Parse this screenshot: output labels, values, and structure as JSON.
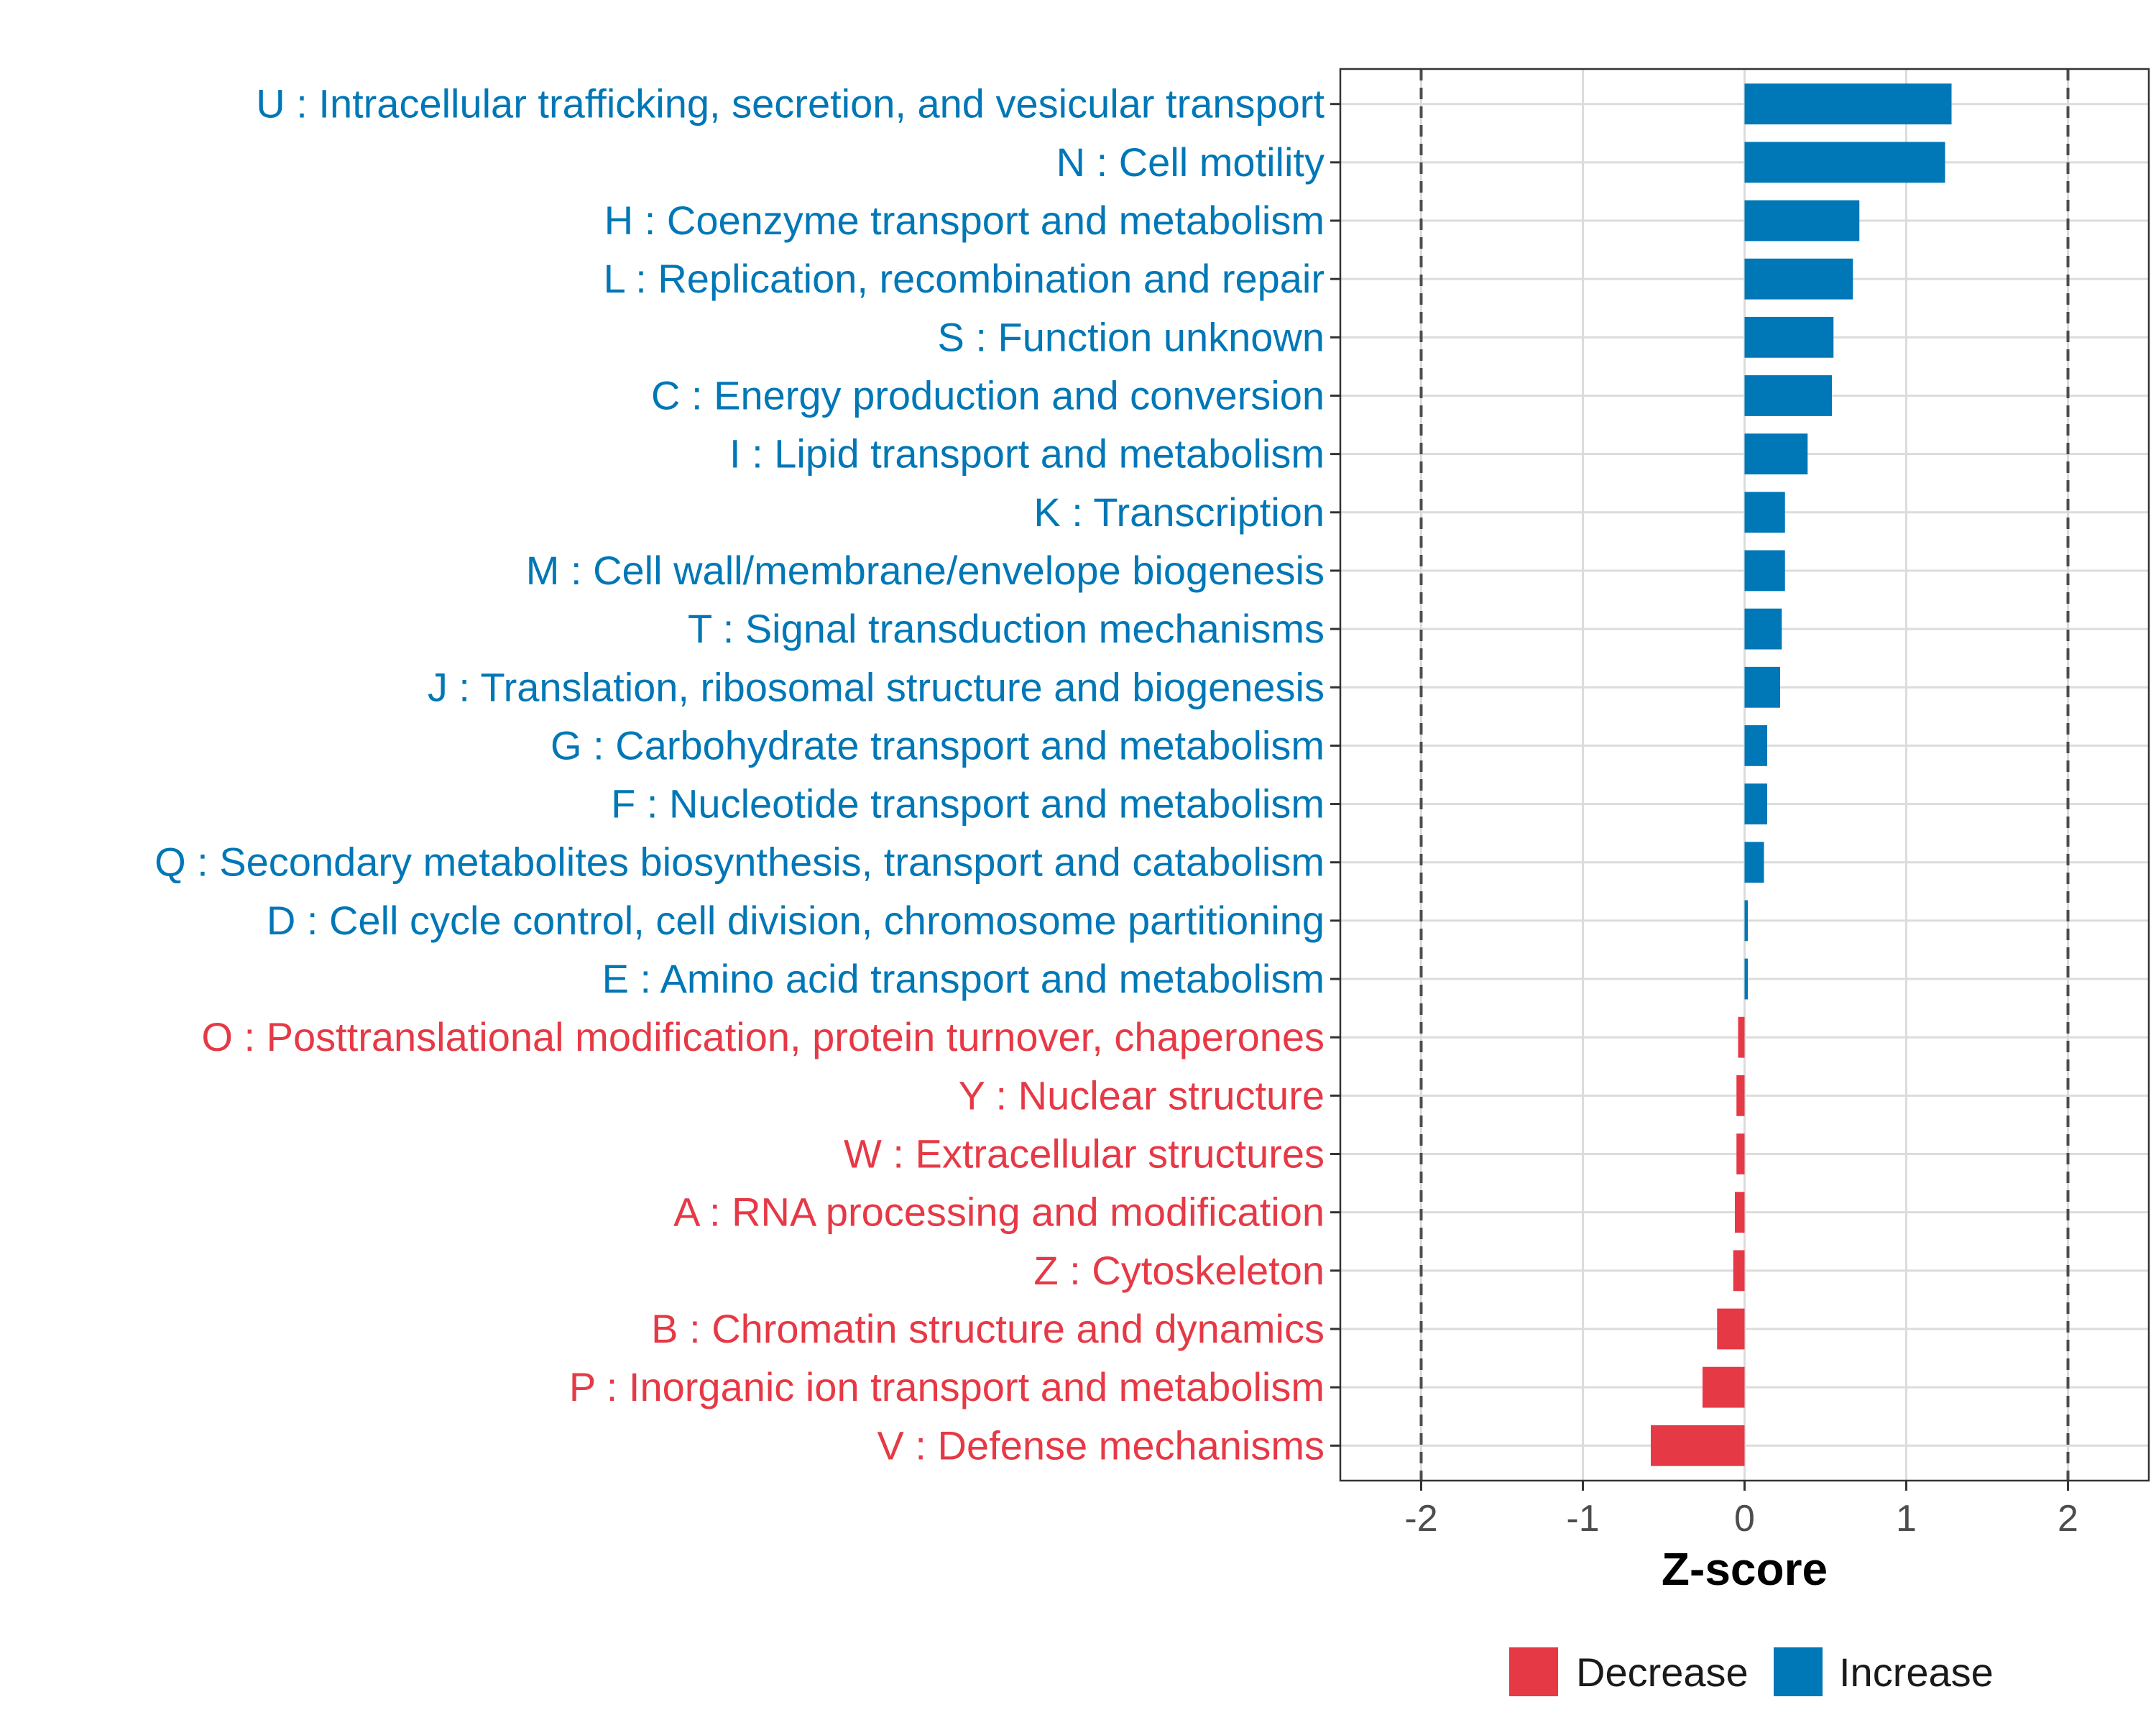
{
  "chart_data": {
    "type": "bar",
    "orientation": "horizontal",
    "xlabel": "Z-score",
    "xlim": [
      -2.5,
      2.5
    ],
    "x_ticks": [
      -2,
      -1,
      0,
      1,
      2
    ],
    "x_tick_labels": [
      "-2",
      "-1",
      "0",
      "1",
      "2"
    ],
    "reference_lines": [
      -2,
      2
    ],
    "grid": true,
    "legend_position": "bottom",
    "colors": {
      "Decrease": "#e63946",
      "Increase": "#0077b6",
      "axis": "#333333",
      "grid": "#dcdcdc",
      "refline": "#4d4d4d"
    },
    "legend": [
      "Decrease",
      "Increase"
    ],
    "categories": [
      {
        "label": "U : Intracellular trafficking, secretion, and vesicular transport",
        "value": 1.28,
        "group": "Increase"
      },
      {
        "label": "N : Cell motility",
        "value": 1.24,
        "group": "Increase"
      },
      {
        "label": "H : Coenzyme transport and metabolism",
        "value": 0.71,
        "group": "Increase"
      },
      {
        "label": "L : Replication, recombination and repair",
        "value": 0.67,
        "group": "Increase"
      },
      {
        "label": "S : Function unknown",
        "value": 0.55,
        "group": "Increase"
      },
      {
        "label": "C : Energy production and conversion",
        "value": 0.54,
        "group": "Increase"
      },
      {
        "label": "I : Lipid transport and metabolism",
        "value": 0.39,
        "group": "Increase"
      },
      {
        "label": "K : Transcription",
        "value": 0.25,
        "group": "Increase"
      },
      {
        "label": "M : Cell wall/membrane/envelope biogenesis",
        "value": 0.25,
        "group": "Increase"
      },
      {
        "label": "T : Signal transduction mechanisms",
        "value": 0.23,
        "group": "Increase"
      },
      {
        "label": "J : Translation, ribosomal structure and biogenesis",
        "value": 0.22,
        "group": "Increase"
      },
      {
        "label": "G : Carbohydrate transport and metabolism",
        "value": 0.14,
        "group": "Increase"
      },
      {
        "label": "F : Nucleotide transport and metabolism",
        "value": 0.14,
        "group": "Increase"
      },
      {
        "label": "Q : Secondary metabolites biosynthesis, transport and catabolism",
        "value": 0.12,
        "group": "Increase"
      },
      {
        "label": "D : Cell cycle control, cell division, chromosome partitioning",
        "value": 0.02,
        "group": "Increase"
      },
      {
        "label": "E : Amino acid transport and metabolism",
        "value": 0.02,
        "group": "Increase"
      },
      {
        "label": "O : Posttranslational modification, protein turnover, chaperones",
        "value": -0.04,
        "group": "Decrease"
      },
      {
        "label": "Y : Nuclear structure",
        "value": -0.05,
        "group": "Decrease"
      },
      {
        "label": "W : Extracellular structures",
        "value": -0.05,
        "group": "Decrease"
      },
      {
        "label": "A : RNA processing and modification",
        "value": -0.06,
        "group": "Decrease"
      },
      {
        "label": "Z : Cytoskeleton",
        "value": -0.07,
        "group": "Decrease"
      },
      {
        "label": "B : Chromatin structure and dynamics",
        "value": -0.17,
        "group": "Decrease"
      },
      {
        "label": "P : Inorganic ion transport and metabolism",
        "value": -0.26,
        "group": "Decrease"
      },
      {
        "label": "V : Defense mechanisms",
        "value": -0.58,
        "group": "Decrease"
      }
    ]
  }
}
